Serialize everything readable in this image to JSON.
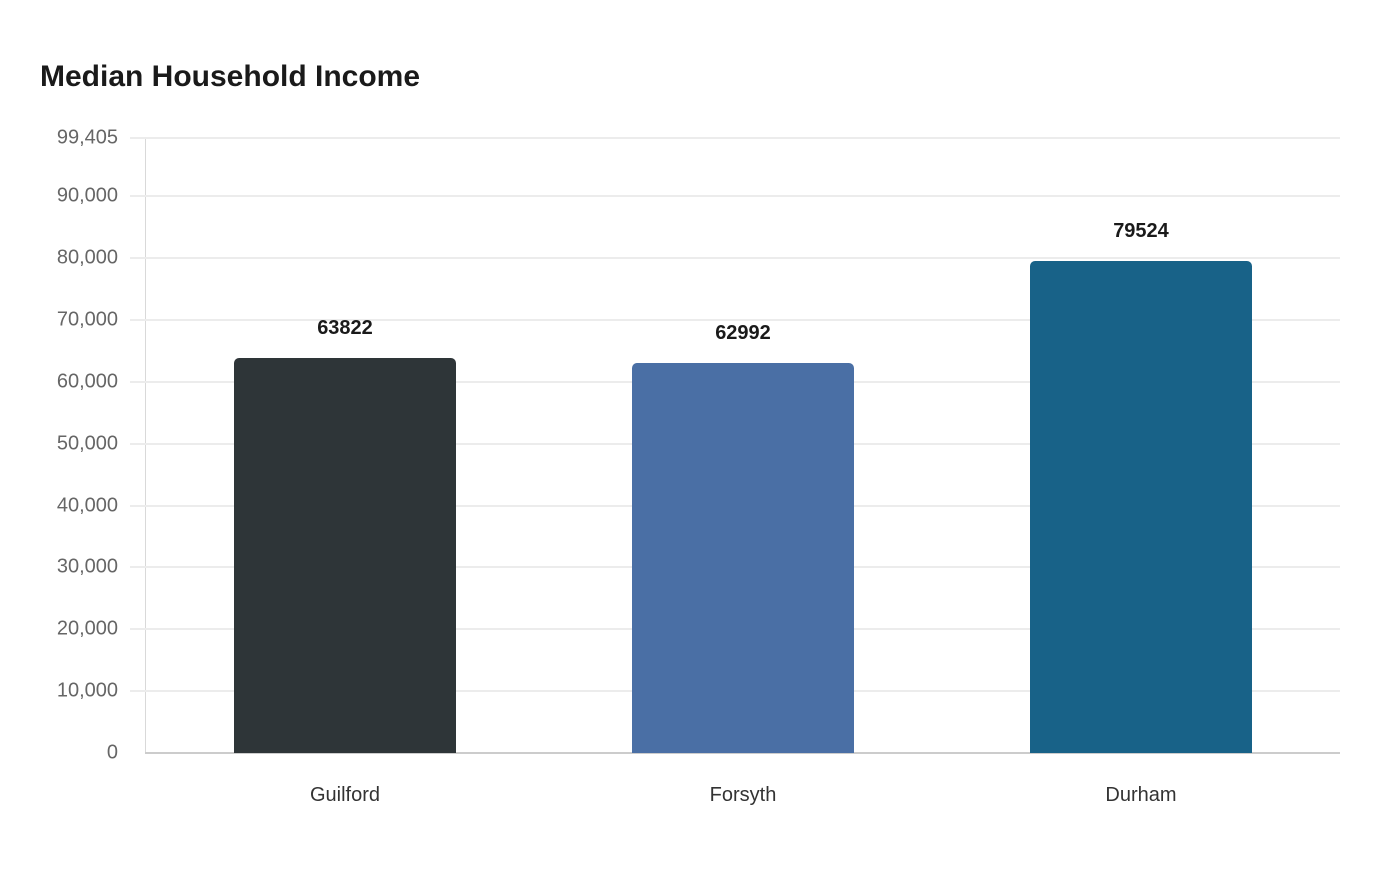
{
  "chart_data": {
    "type": "bar",
    "title": "Median Household Income",
    "xlabel": "",
    "ylabel": "",
    "categories": [
      "Guilford",
      "Forsyth",
      "Durham"
    ],
    "values": [
      63822,
      62992,
      79524
    ],
    "colors": [
      "#2e3538",
      "#4a6fa5",
      "#186288"
    ],
    "data_labels": [
      "63822",
      "62992",
      "79524"
    ],
    "ylim": [
      0,
      99405
    ],
    "yticks": [
      0,
      10000,
      20000,
      30000,
      40000,
      50000,
      60000,
      70000,
      80000,
      90000,
      99405
    ],
    "ytick_labels": [
      "0",
      "10,000",
      "20,000",
      "30,000",
      "40,000",
      "50,000",
      "60,000",
      "70,000",
      "80,000",
      "90,000",
      "99,405"
    ],
    "grid": true,
    "legend": null
  }
}
